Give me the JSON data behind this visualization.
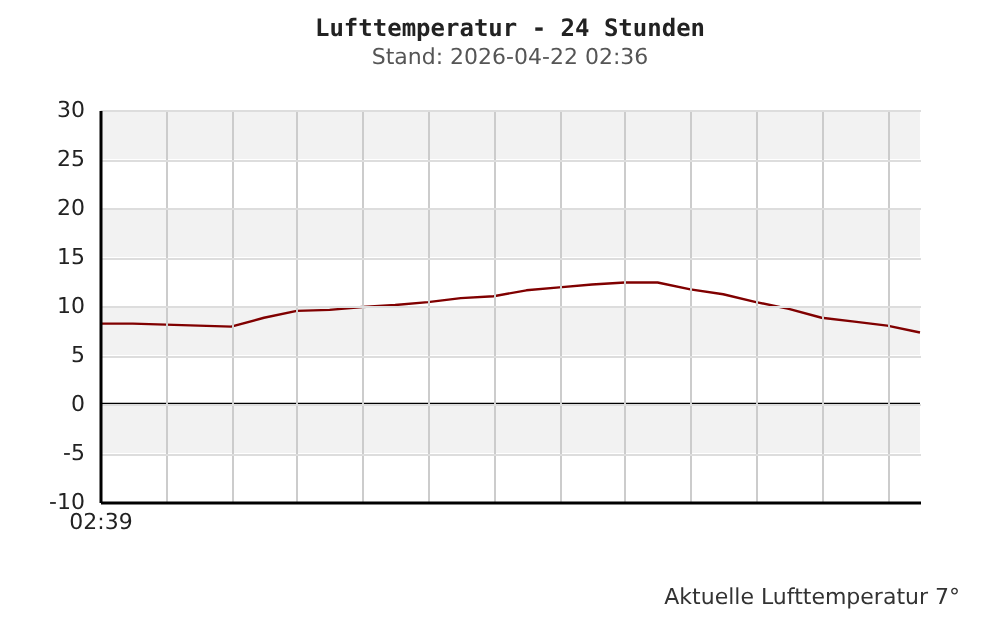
{
  "chart_data": {
    "type": "line",
    "title": "Lufttemperatur - 24 Stunden",
    "subtitle": "Stand: 2026-04-22 02:36",
    "categories": [
      "02:39",
      null,
      null,
      null,
      null,
      null,
      null,
      null,
      null,
      null,
      null,
      null,
      null,
      null,
      null,
      null,
      null,
      null,
      null,
      null,
      null,
      null,
      null,
      null,
      null,
      null
    ],
    "series": [
      {
        "color": "#800000",
        "values": [
          8.2,
          8.2,
          8.1,
          8.0,
          7.9,
          8.8,
          9.5,
          9.6,
          9.9,
          10.1,
          10.4,
          10.8,
          11.0,
          11.6,
          11.9,
          12.2,
          12.4,
          12.4,
          11.7,
          11.2,
          10.4,
          9.7,
          8.8,
          8.4,
          8.0,
          7.3
        ]
      }
    ],
    "ylim": [
      -10,
      30
    ],
    "yticks": [
      -10,
      -5,
      0,
      5,
      10,
      15,
      20,
      25,
      30
    ],
    "grid": true,
    "bands": [
      {
        "axis": "y",
        "from": 25,
        "to": 30,
        "color": "#f2f2f2"
      },
      {
        "axis": "y",
        "from": 15,
        "to": 20,
        "color": "#f2f2f2"
      },
      {
        "axis": "y",
        "from": 5,
        "to": 10,
        "color": "#f2f2f2"
      },
      {
        "axis": "y",
        "from": -5,
        "to": 0,
        "color": "#f2f2f2"
      }
    ],
    "ref_lines": [
      {
        "axis": "y",
        "value": 0,
        "color": "#000000"
      }
    ],
    "annotations": [
      "Aktuelle Lufttemperatur 7°"
    ]
  }
}
